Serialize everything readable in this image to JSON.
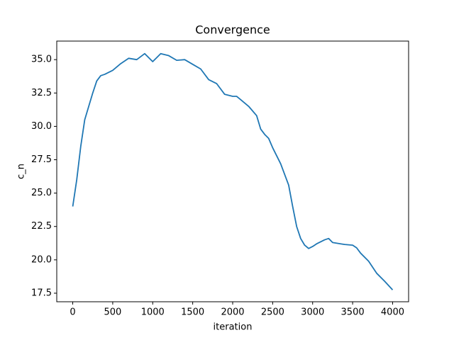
{
  "chart_data": {
    "type": "line",
    "title": "Convergence",
    "x_label": "iteration",
    "y_label": "c_n",
    "x": [
      0,
      50,
      100,
      150,
      200,
      250,
      300,
      350,
      400,
      500,
      600,
      700,
      800,
      900,
      1000,
      1100,
      1200,
      1300,
      1400,
      1500,
      1600,
      1700,
      1800,
      1900,
      2000,
      2050,
      2100,
      2200,
      2300,
      2350,
      2400,
      2450,
      2500,
      2600,
      2700,
      2750,
      2800,
      2850,
      2900,
      2950,
      3000,
      3050,
      3150,
      3200,
      3250,
      3350,
      3400,
      3500,
      3550,
      3600,
      3700,
      3800,
      3900,
      4000
    ],
    "series": [
      {
        "name": "c_n",
        "color": "#1f77b4",
        "values": [
          24.0,
          26.0,
          28.5,
          30.5,
          31.5,
          32.5,
          33.4,
          33.8,
          33.9,
          34.2,
          34.7,
          35.1,
          35.0,
          35.45,
          34.85,
          35.45,
          35.3,
          34.95,
          35.0,
          34.65,
          34.3,
          33.5,
          33.2,
          32.4,
          32.25,
          32.25,
          32.0,
          31.5,
          30.8,
          29.8,
          29.4,
          29.1,
          28.4,
          27.2,
          25.6,
          24.0,
          22.5,
          21.6,
          21.1,
          20.85,
          21.0,
          21.2,
          21.5,
          21.6,
          21.3,
          21.2,
          21.15,
          21.1,
          20.9,
          20.5,
          19.9,
          19.0,
          18.4,
          17.75
        ]
      }
    ],
    "xlim": [
      -200,
      4200
    ],
    "ylim": [
      16.86,
      36.39
    ],
    "xticks": [
      0,
      500,
      1000,
      1500,
      2000,
      2500,
      3000,
      3500,
      4000
    ],
    "yticks": [
      17.5,
      {
        "value": 20,
        "label": "20.0"
      },
      22.5,
      {
        "value": 25,
        "label": "25.0"
      },
      27.5,
      {
        "value": 30,
        "label": "30.0"
      },
      32.5,
      {
        "value": 35,
        "label": "35.0"
      }
    ]
  }
}
